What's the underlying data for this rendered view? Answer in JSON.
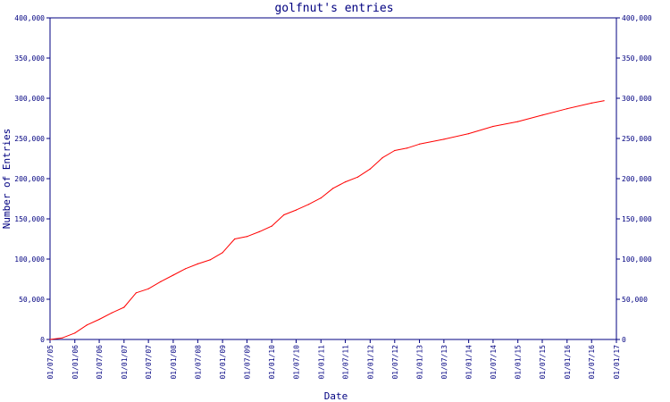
{
  "chart_data": {
    "type": "line",
    "title": "golfnut's entries",
    "xlabel": "Date",
    "ylabel": "Number of Entries",
    "x_tick_labels": [
      "01/07/05",
      "01/01/06",
      "01/07/06",
      "01/01/07",
      "01/07/07",
      "01/01/08",
      "01/07/08",
      "01/01/09",
      "01/07/09",
      "01/01/10",
      "01/07/10",
      "01/01/11",
      "01/07/11",
      "01/01/12",
      "01/07/12",
      "01/01/13",
      "01/07/13",
      "01/01/14",
      "01/07/14",
      "01/01/15",
      "01/07/15",
      "01/01/16",
      "01/07/16",
      "01/01/17"
    ],
    "y_ticks": [
      0,
      50000,
      100000,
      150000,
      200000,
      250000,
      300000,
      350000,
      400000
    ],
    "y_tick_labels": [
      "0",
      "50,000",
      "100,000",
      "150,000",
      "200,000",
      "250,000",
      "300,000",
      "350,000",
      "400,000"
    ],
    "ylim": [
      0,
      400000
    ],
    "xlim": [
      "2005-07-01",
      "2017-01-01"
    ],
    "grid": false,
    "legend": "none",
    "colors": {
      "line": "#ff0000",
      "axis": "#000080"
    },
    "series": [
      {
        "x": [
          "2005-07-01",
          "2005-10-01",
          "2006-01-01",
          "2006-04-01",
          "2006-07-01",
          "2006-10-01",
          "2007-01-01",
          "2007-04-01",
          "2007-07-01",
          "2007-10-01",
          "2008-01-01",
          "2008-04-01",
          "2008-07-01",
          "2008-10-01",
          "2009-01-01",
          "2009-04-01",
          "2009-07-01",
          "2009-10-01",
          "2010-01-01",
          "2010-04-01",
          "2010-07-01",
          "2010-10-01",
          "2011-01-01",
          "2011-04-01",
          "2011-07-01",
          "2011-10-01",
          "2012-01-01",
          "2012-04-01",
          "2012-07-01",
          "2012-10-01",
          "2013-01-01",
          "2013-07-01",
          "2014-01-01",
          "2014-07-01",
          "2015-01-01",
          "2015-07-01",
          "2016-01-01",
          "2016-07-01",
          "2016-10-01"
        ],
        "values": [
          0,
          2000,
          8000,
          18000,
          25000,
          33000,
          40000,
          58000,
          63000,
          72000,
          80000,
          88000,
          94000,
          99000,
          108000,
          125000,
          128000,
          134000,
          141000,
          155000,
          161000,
          168000,
          176000,
          188000,
          196000,
          202000,
          212000,
          226000,
          235000,
          238000,
          243000,
          249000,
          256000,
          265000,
          271000,
          279000,
          287000,
          294000,
          297000
        ]
      }
    ]
  }
}
